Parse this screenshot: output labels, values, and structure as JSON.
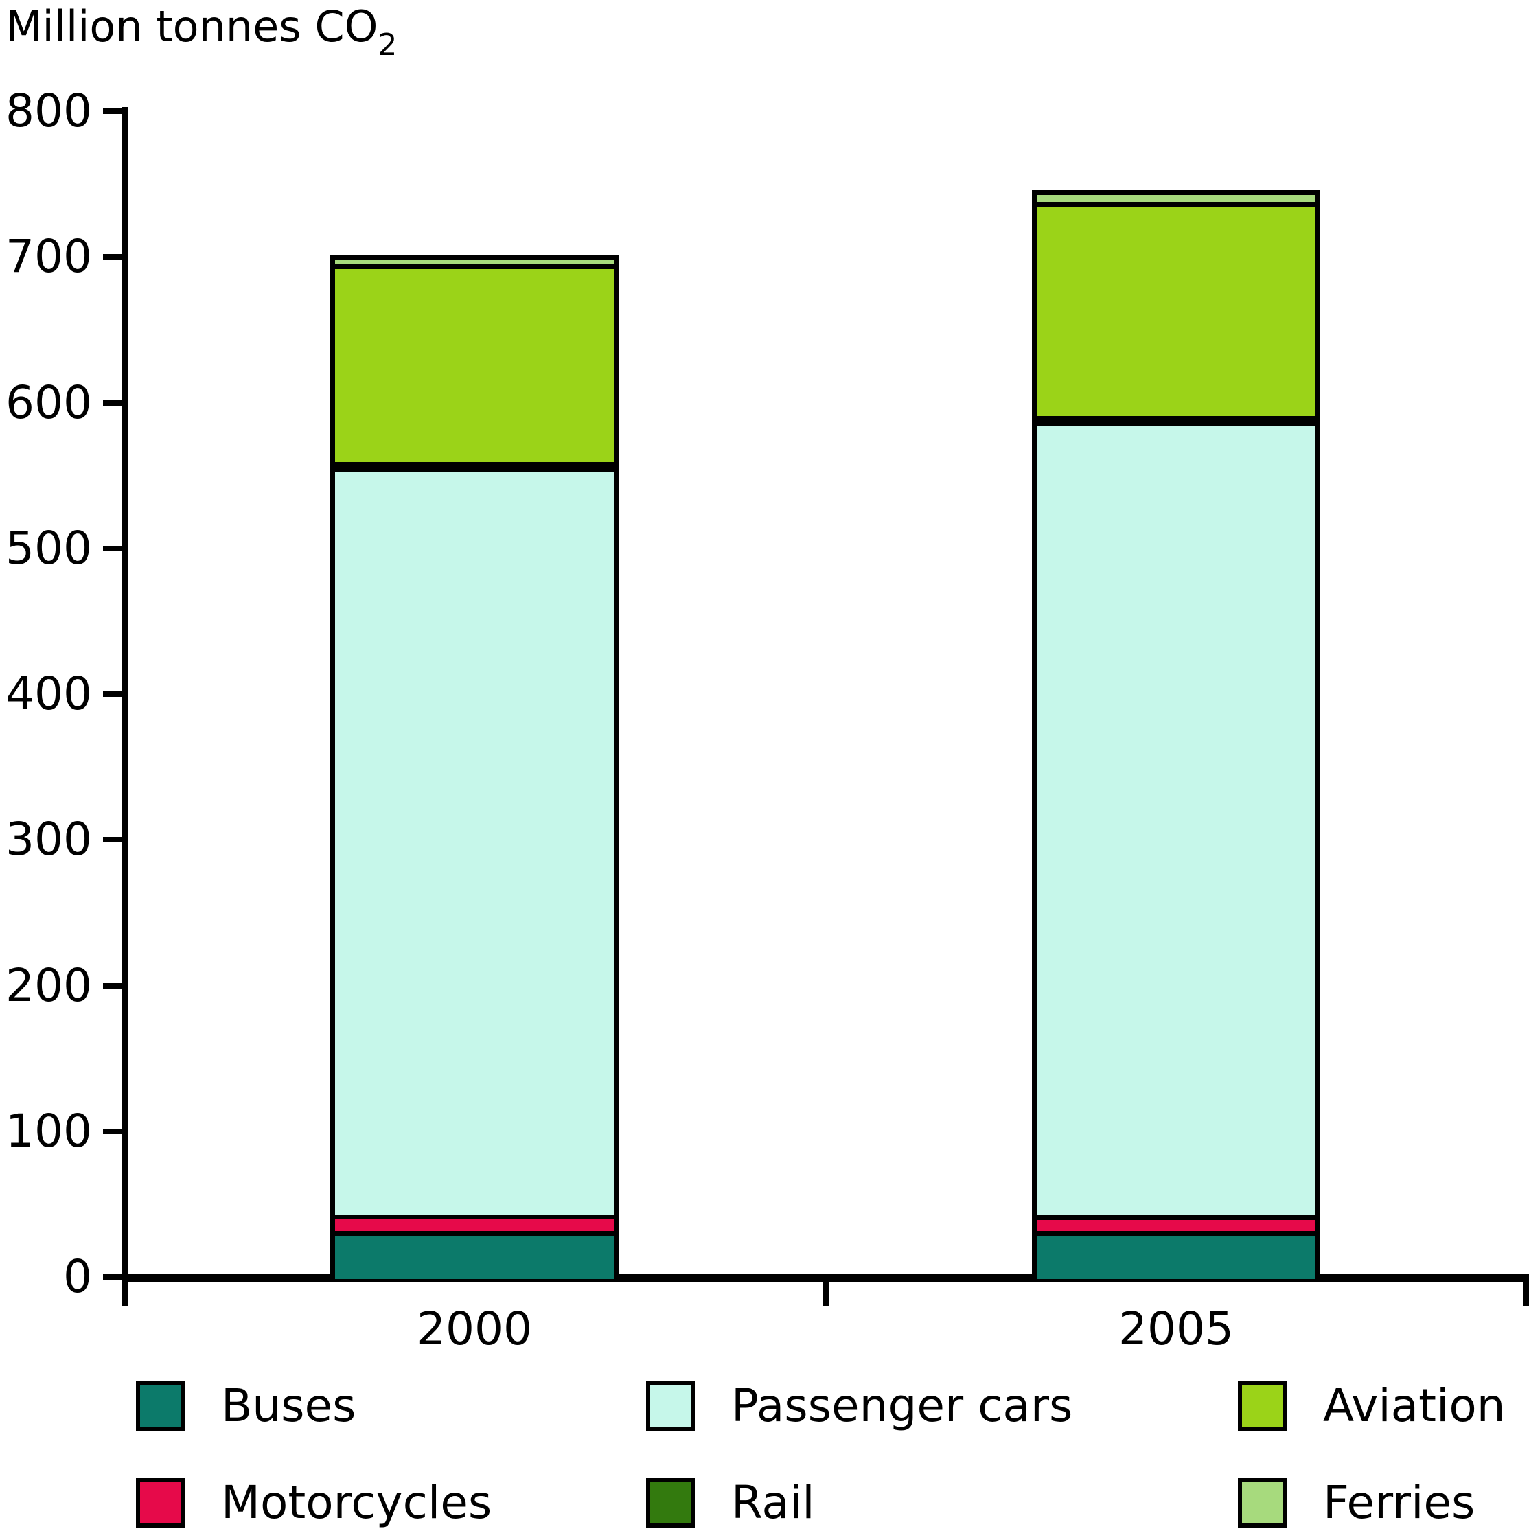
{
  "title": {
    "text": "Million tonnes CO",
    "subscript": "2"
  },
  "chart_data": {
    "type": "bar",
    "stacked": true,
    "title": "Million tonnes CO2",
    "ylabel": "Million tonnes CO2",
    "xlabel": "",
    "categories": [
      "2000",
      "2005"
    ],
    "series": [
      {
        "name": "Buses",
        "color": "#0c7a6a",
        "values": [
          33,
          33
        ]
      },
      {
        "name": "Motorcycles",
        "color": "#e60a4a",
        "values": [
          11,
          11
        ]
      },
      {
        "name": "Passenger cars",
        "color": "#c6f7ea",
        "values": [
          513,
          545
        ]
      },
      {
        "name": "Rail",
        "color": "#337a0e",
        "values": [
          2,
          2
        ]
      },
      {
        "name": "Aviation",
        "color": "#9bd318",
        "values": [
          136,
          147
        ]
      },
      {
        "name": "Ferries",
        "color": "#a7da7d",
        "values": [
          6,
          8
        ]
      }
    ],
    "totals": [
      701,
      746
    ],
    "ylim": [
      0,
      800
    ],
    "yticks": [
      0,
      100,
      200,
      300,
      400,
      500,
      600,
      700,
      800
    ],
    "grid": false,
    "legend_position": "bottom"
  },
  "legend": {
    "items": [
      {
        "label": "Buses",
        "color": "#0c7a6a"
      },
      {
        "label": "Passenger cars",
        "color": "#c6f7ea"
      },
      {
        "label": "Aviation",
        "color": "#9bd318"
      },
      {
        "label": "Motorcycles",
        "color": "#e60a4a"
      },
      {
        "label": "Rail",
        "color": "#337a0e"
      },
      {
        "label": "Ferries",
        "color": "#a7da7d"
      }
    ]
  },
  "colors": {
    "axis": "#000000",
    "background": "#ffffff"
  }
}
